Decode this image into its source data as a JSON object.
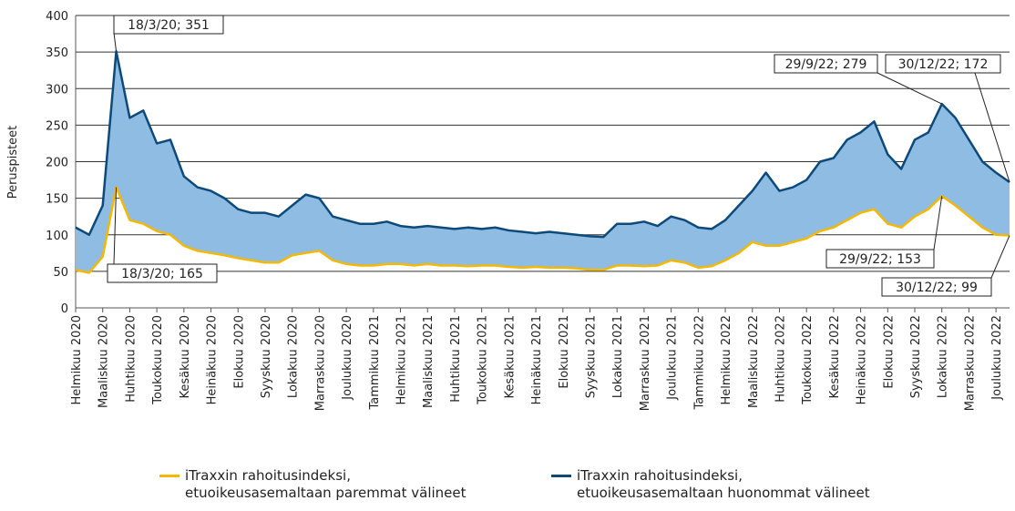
{
  "chart_data": {
    "type": "line",
    "ylabel": "Peruspisteet",
    "categories": [
      "Helmikuu 2020",
      null,
      "Maaliskuu 2020",
      null,
      "Huhtikuu 2020",
      null,
      "Toukokuu 2020",
      null,
      "Kesäkuu 2020",
      null,
      "Heinäkuu 2020",
      null,
      "Elokuu 2020",
      null,
      "Syyskuu 2020",
      null,
      "Lokakuu 2020",
      null,
      "Marraskuu 2020",
      null,
      "Joulukuu 2020",
      null,
      "Tammikuu 2021",
      null,
      "Helmikuu 2021",
      null,
      "Maaliskuu 2021",
      null,
      "Huhtikuu 2021",
      null,
      "Toukokuu 2021",
      null,
      "Kesäkuu 2021",
      null,
      "Heinäkuu 2021",
      null,
      "Elokuu 2021",
      null,
      "Syyskuu 2021",
      null,
      "Lokakuu 2021",
      null,
      "Marraskuu 2021",
      null,
      "Joulukuu 2021",
      null,
      "Tammikuu 2022",
      null,
      "Helmikuu 2022",
      null,
      "Maaliskuu 2022",
      null,
      "Huhtikuu 2022",
      null,
      "Toukokuu 2022",
      null,
      "Kesäkuu 2022",
      null,
      "Heinäkuu 2022",
      null,
      "Elokuu 2022",
      null,
      "Syyskuu 2022",
      null,
      "Lokakuu 2022",
      null,
      "Marraskuu 2022",
      null,
      "Joulukuu 2022",
      null
    ],
    "series": [
      {
        "name": "iTraxxin rahoitusindeksi, etuoikeusasemaltaan paremmat välineet",
        "color": "#f5b800",
        "values": [
          52,
          48,
          70,
          165,
          120,
          115,
          105,
          100,
          85,
          78,
          75,
          72,
          68,
          65,
          62,
          62,
          72,
          75,
          78,
          65,
          60,
          58,
          58,
          60,
          60,
          58,
          60,
          58,
          58,
          57,
          58,
          58,
          56,
          55,
          56,
          55,
          55,
          54,
          52,
          52,
          58,
          58,
          57,
          58,
          65,
          62,
          55,
          57,
          65,
          75,
          90,
          85,
          85,
          90,
          95,
          105,
          110,
          120,
          130,
          135,
          115,
          110,
          125,
          135,
          153,
          140,
          125,
          110,
          100,
          99
        ]
      },
      {
        "name": "iTraxxin rahoitusindeksi, etuoikeusasemaltaan huonommat välineet",
        "color": "#0d4a7a",
        "values": [
          110,
          100,
          140,
          351,
          260,
          270,
          225,
          230,
          180,
          165,
          160,
          150,
          135,
          130,
          130,
          125,
          140,
          155,
          150,
          125,
          120,
          115,
          115,
          118,
          112,
          110,
          112,
          110,
          108,
          110,
          108,
          110,
          106,
          104,
          102,
          104,
          102,
          100,
          98,
          97,
          115,
          115,
          118,
          112,
          125,
          120,
          110,
          108,
          120,
          140,
          160,
          185,
          160,
          165,
          175,
          200,
          205,
          230,
          240,
          255,
          210,
          190,
          230,
          240,
          279,
          260,
          230,
          200,
          185,
          172
        ]
      }
    ],
    "fill_color": "#8fbce3",
    "ylim": [
      0,
      400
    ],
    "yticks": [
      0,
      50,
      100,
      150,
      200,
      250,
      300,
      350,
      400
    ],
    "grid": true,
    "annotations": [
      "18/3/20; 351",
      "18/3/20; 165",
      "29/9/22; 279",
      "30/12/22; 172",
      "29/9/22; 153",
      "30/12/22; 99"
    ]
  }
}
